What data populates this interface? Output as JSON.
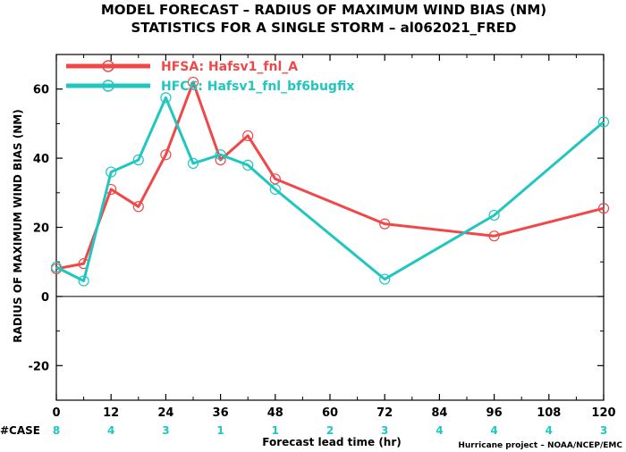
{
  "header": {
    "title_line1": "MODEL FORECAST – RADIUS OF MAXIMUM WIND BIAS (NM)",
    "title_line2": "STATISTICS FOR A SINGLE STORM – al062021_FRED"
  },
  "footer": {
    "credit": "Hurricane project – NOAA/NCEP/EMC"
  },
  "cases": {
    "label": "#CASE",
    "color": "#20c6c0",
    "values": [
      "8",
      "4",
      "3",
      "1",
      "1",
      "2",
      "3",
      "4",
      "4",
      "4",
      "3"
    ]
  },
  "chart_data": {
    "type": "line",
    "title": "MODEL FORECAST – RADIUS OF MAXIMUM WIND BIAS (NM)",
    "subtitle": "STATISTICS FOR A SINGLE STORM – al062021_FRED",
    "xlabel": "Forecast lead time (hr)",
    "ylabel": "RADIUS OF MAXIMUM WIND BIAS (NM)",
    "xlim": [
      0,
      120
    ],
    "ylim": [
      -30,
      70
    ],
    "x_ticks": [
      "0",
      "12",
      "24",
      "36",
      "48",
      "60",
      "72",
      "84",
      "96",
      "108",
      "120"
    ],
    "y_ticks": [
      "-20",
      "0",
      "20",
      "40",
      "60"
    ],
    "x_tick_values": [
      0,
      12,
      24,
      36,
      48,
      60,
      72,
      84,
      96,
      108,
      120
    ],
    "y_tick_values": [
      -20,
      0,
      20,
      40,
      60
    ],
    "zero_line": true,
    "grid": false,
    "legend_position": "top-left",
    "series": [
      {
        "name": "HFSA: Hafsv1_fnl_A",
        "color": "#f04848",
        "x": [
          0,
          6,
          12,
          18,
          24,
          30,
          36,
          42,
          48,
          72,
          96,
          120
        ],
        "y": [
          8,
          9.5,
          31,
          26,
          41,
          62,
          39.5,
          46.5,
          34,
          21,
          17.5,
          25.5
        ]
      },
      {
        "name": "HFC6: Hafsv1_fnl_bf6bugfix",
        "color": "#20c6c0",
        "x": [
          0,
          6,
          12,
          18,
          24,
          30,
          36,
          42,
          48,
          72,
          96,
          120
        ],
        "y": [
          8.5,
          4.5,
          36,
          39.5,
          57.5,
          38.5,
          41,
          38,
          31,
          5,
          23.5,
          50.5
        ]
      }
    ]
  }
}
